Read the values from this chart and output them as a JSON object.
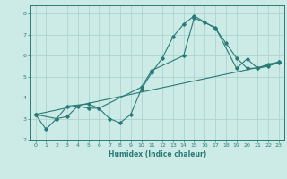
{
  "xlabel": "Humidex (Indice chaleur)",
  "line_color": "#2a7b76",
  "bg_color": "#cceae6",
  "grid_color": "#aed4d0",
  "axis_color": "#2a7b76",
  "line1_x": [
    0,
    1,
    2,
    3,
    4,
    5,
    6,
    7,
    8,
    9,
    10,
    11,
    12,
    13,
    14,
    15,
    16,
    17,
    18,
    19,
    20,
    21,
    22,
    23
  ],
  "line1_y": [
    3.2,
    2.5,
    3.0,
    3.1,
    3.6,
    3.5,
    3.5,
    3.0,
    2.8,
    3.2,
    4.4,
    5.2,
    5.9,
    6.9,
    7.5,
    7.9,
    7.6,
    7.3,
    6.6,
    5.9,
    5.4,
    5.4,
    5.6,
    5.7
  ],
  "line2_x": [
    0,
    2,
    3,
    5,
    6,
    10,
    11,
    14,
    15,
    17,
    19,
    20,
    21,
    22,
    23
  ],
  "line2_y": [
    3.2,
    3.0,
    3.6,
    3.7,
    3.5,
    4.5,
    5.3,
    6.0,
    7.8,
    7.35,
    5.4,
    5.85,
    5.4,
    5.5,
    5.7
  ],
  "line3_x": [
    0,
    23
  ],
  "line3_y": [
    3.2,
    5.65
  ],
  "xlim": [
    -0.5,
    23.5
  ],
  "ylim": [
    2.0,
    8.4
  ],
  "yticks": [
    2,
    3,
    4,
    5,
    6,
    7,
    8
  ],
  "xticks": [
    0,
    1,
    2,
    3,
    4,
    5,
    6,
    7,
    8,
    9,
    10,
    11,
    12,
    13,
    14,
    15,
    16,
    17,
    18,
    19,
    20,
    21,
    22,
    23
  ]
}
